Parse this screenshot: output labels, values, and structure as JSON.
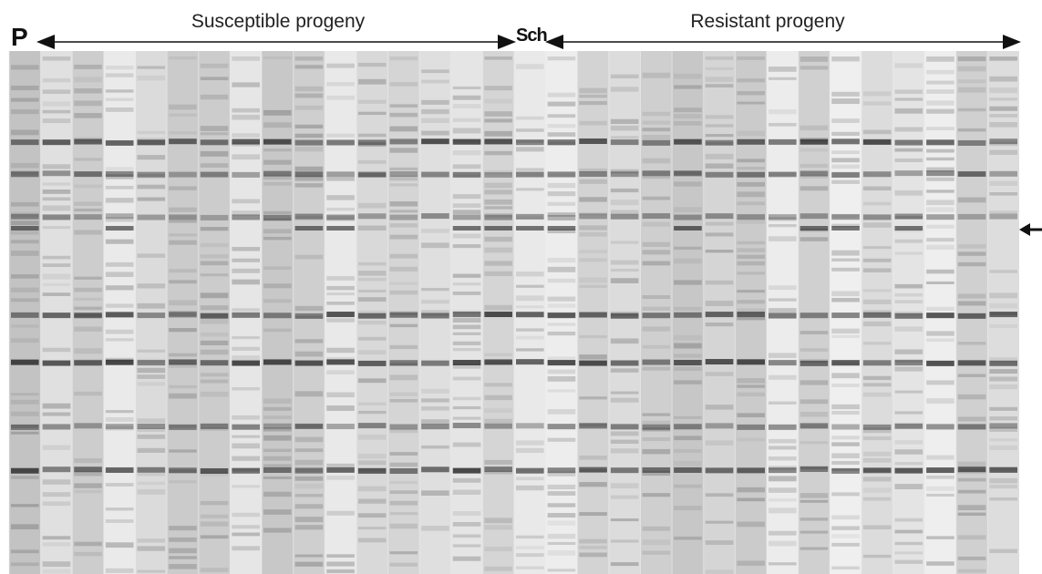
{
  "labels": {
    "p": "P",
    "susceptible": "Susceptible progeny",
    "sch": "Sch",
    "resistant": "Resistant progeny"
  }
}
